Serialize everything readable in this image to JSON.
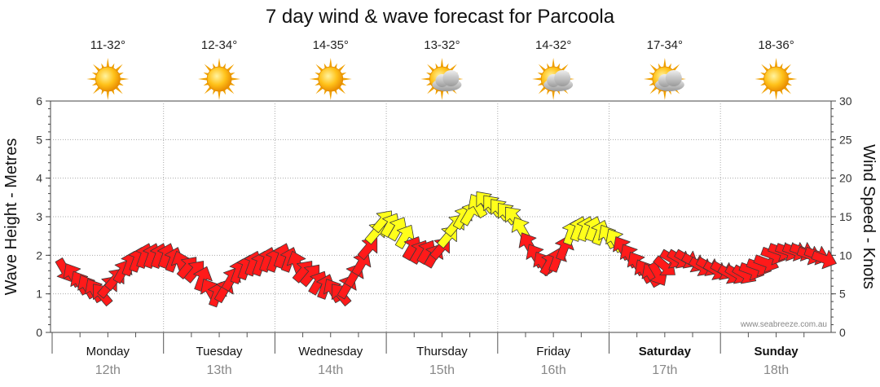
{
  "chart_data": {
    "type": "forecast",
    "title": "7 day wind & wave forecast for Parcoola",
    "ylabel_left": "Wave Height - Metres",
    "ylabel_right": "Wind Speed - Knots",
    "ylim_left": [
      0,
      6
    ],
    "ylim_right": [
      0,
      30
    ],
    "yticks_left": [
      "0",
      "1",
      "2",
      "3",
      "4",
      "5",
      "6"
    ],
    "yticks_right": [
      "0",
      "5",
      "10",
      "15",
      "20",
      "25",
      "30"
    ],
    "credit": "www.seabreeze.com.au",
    "days": [
      {
        "name": "Monday",
        "date": "12th",
        "temp": "11-32°",
        "weather": "sunny",
        "weekend": false
      },
      {
        "name": "Tuesday",
        "date": "13th",
        "temp": "12-34°",
        "weather": "sunny",
        "weekend": false
      },
      {
        "name": "Wednesday",
        "date": "14th",
        "temp": "14-35°",
        "weather": "sunny",
        "weekend": false
      },
      {
        "name": "Thursday",
        "date": "15th",
        "temp": "13-32°",
        "weather": "partly-cloudy",
        "weekend": false
      },
      {
        "name": "Friday",
        "date": "16th",
        "temp": "14-32°",
        "weather": "partly-cloudy",
        "weekend": false
      },
      {
        "name": "Saturday",
        "date": "17th",
        "temp": "17-34°",
        "weather": "partly-cloudy",
        "weekend": true
      },
      {
        "name": "Sunday",
        "date": "18th",
        "temp": "18-36°",
        "weather": "sunny",
        "weekend": true
      }
    ],
    "colors": {
      "strong": "#ff1a1a",
      "light": "#ffff1a",
      "outline": "#3a3a3a",
      "grid": "#aaaaaa"
    },
    "wind_series": {
      "name": "Wind (knots, direction arrows)",
      "knots": [
        8,
        7.5,
        6.5,
        6,
        5.5,
        5,
        6,
        7,
        8,
        9,
        9.5,
        10,
        10,
        10,
        10,
        9.5,
        9,
        8.5,
        8,
        7,
        5.5,
        5,
        5.5,
        7,
        8,
        8.5,
        9,
        9,
        9.5,
        9.5,
        10,
        9.5,
        9,
        8,
        7.5,
        6.5,
        6,
        5.5,
        5,
        6,
        7.5,
        9,
        11,
        13,
        14.5,
        14,
        13.5,
        12.5,
        11,
        10.5,
        10.5,
        10,
        11,
        12.5,
        14,
        15,
        15.5,
        16.5,
        17,
        16.5,
        16,
        15.5,
        15,
        13.5,
        11.5,
        10,
        9,
        9,
        9.5,
        11,
        13,
        13.5,
        13.5,
        13.5,
        13,
        12.5,
        12,
        11,
        10,
        9,
        8,
        7.5,
        7.5,
        8.5,
        9.5,
        9.5,
        9.5,
        9,
        8.5,
        8.5,
        8,
        8,
        7.5,
        7.5,
        7.5,
        8,
        8.5,
        9,
        10,
        10.5,
        10.5,
        10.5,
        10.5,
        10,
        10,
        9.5
      ],
      "direction_deg": [
        150,
        330,
        330,
        330,
        330,
        320,
        40,
        40,
        30,
        20,
        20,
        20,
        20,
        20,
        20,
        20,
        340,
        40,
        40,
        20,
        330,
        20,
        30,
        30,
        20,
        20,
        20,
        20,
        20,
        20,
        20,
        20,
        340,
        40,
        40,
        30,
        20,
        330,
        320,
        30,
        30,
        30,
        40,
        40,
        40,
        30,
        30,
        30,
        30,
        30,
        30,
        30,
        40,
        40,
        40,
        30,
        30,
        330,
        320,
        320,
        320,
        320,
        320,
        330,
        330,
        330,
        330,
        30,
        20,
        20,
        20,
        20,
        20,
        20,
        20,
        330,
        330,
        330,
        330,
        330,
        330,
        330,
        150,
        130,
        120,
        120,
        120,
        120,
        120,
        120,
        120,
        120,
        120,
        120,
        120,
        110,
        110,
        110,
        110,
        110,
        110,
        110,
        110,
        110,
        110,
        110
      ]
    }
  }
}
